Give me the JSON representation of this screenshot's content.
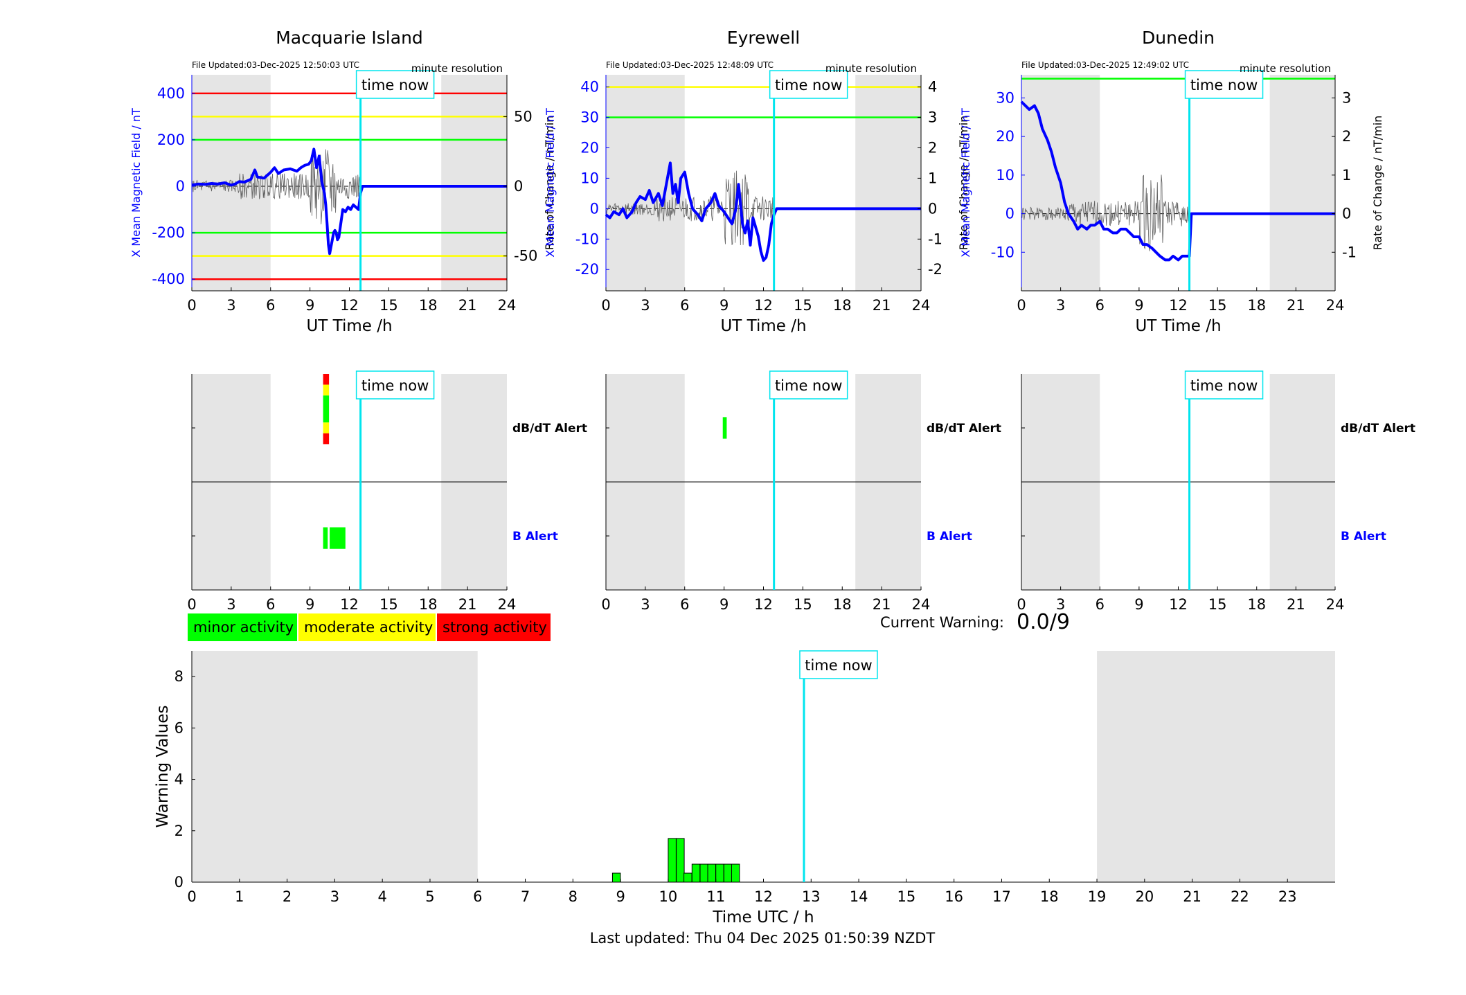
{
  "page": {
    "last_updated": "Last updated: Thu 04 Dec 2025 01:50:39 NZDT",
    "current_warning_label": "Current Warning:",
    "current_warning_value": "0.0/9",
    "time_now_label": "time now",
    "legend": [
      {
        "label": "minor activity",
        "color": "#00ff00"
      },
      {
        "label": "moderate activity",
        "color": "#ffff00"
      },
      {
        "label": "strong activity",
        "color": "#ff0000"
      }
    ],
    "colors": {
      "night_shade": "#e5e5e5",
      "field_line": "#0000ff",
      "rate_line": "#606060",
      "time_now": "#00e5ee",
      "red": "#ff0000",
      "yellow": "#ffff00",
      "green": "#00ff00"
    }
  },
  "chart_data": [
    {
      "id": "macquarie",
      "type": "line",
      "title": "Macquarie Island",
      "file_updated": "File Updated:03-Dec-2025 12:50:03 UTC",
      "resolution": "minute resolution",
      "xlabel": "UT Time /h",
      "ylabel_left": "X Mean Magnetic Field / nT",
      "ylabel_right": "Rate of Change / nT/min",
      "xlim": [
        0,
        24
      ],
      "xticks": [
        0,
        3,
        6,
        9,
        12,
        15,
        18,
        21,
        24
      ],
      "ylim": [
        -450,
        480
      ],
      "yticks": [
        -400,
        -200,
        0,
        200,
        400
      ],
      "y2lim": [
        -75,
        80
      ],
      "y2ticks": [
        -50,
        0,
        50
      ],
      "time_now": 12.85,
      "night": [
        [
          0,
          6
        ],
        [
          19,
          24
        ]
      ],
      "threshold_lines": [
        {
          "y": 400,
          "color": "red"
        },
        {
          "y": 300,
          "color": "yellow"
        },
        {
          "y": 200,
          "color": "green"
        },
        {
          "y": -200,
          "color": "green"
        },
        {
          "y": -300,
          "color": "yellow"
        },
        {
          "y": -400,
          "color": "red"
        }
      ],
      "series": [
        {
          "name": "X Mean Magnetic Field",
          "x": [
            0,
            0.5,
            1,
            1.5,
            2,
            2.5,
            3,
            3.3,
            3.6,
            4,
            4.5,
            4.8,
            5,
            5.5,
            6,
            6.3,
            6.6,
            7,
            7.5,
            8,
            8.3,
            8.6,
            8.9,
            9.1,
            9.3,
            9.5,
            9.7,
            9.9,
            10.1,
            10.2,
            10.3,
            10.4,
            10.5,
            10.6,
            10.7,
            10.8,
            10.9,
            11,
            11.1,
            11.2,
            11.3,
            11.5,
            11.7,
            11.9,
            12.1,
            12.3,
            12.5,
            12.7,
            12.85,
            13,
            24
          ],
          "values": [
            5,
            10,
            8,
            12,
            10,
            15,
            5,
            10,
            20,
            18,
            30,
            70,
            40,
            35,
            60,
            80,
            55,
            70,
            75,
            65,
            80,
            90,
            95,
            110,
            160,
            80,
            130,
            20,
            -30,
            -80,
            -160,
            -250,
            -290,
            -260,
            -230,
            -200,
            -190,
            -200,
            -230,
            -220,
            -180,
            -100,
            -110,
            -90,
            -100,
            -80,
            -90,
            -100,
            -30,
            0,
            0
          ]
        }
      ]
    },
    {
      "id": "eyrewell",
      "type": "line",
      "title": "Eyrewell",
      "file_updated": "File Updated:03-Dec-2025 12:48:09 UTC",
      "resolution": "minute resolution",
      "xlabel": "UT Time /h",
      "ylabel_left": "X Mean Magnetic Field / nT",
      "ylabel_right": "Rate of Change / nT/min",
      "xlim": [
        0,
        24
      ],
      "xticks": [
        0,
        3,
        6,
        9,
        12,
        15,
        18,
        21,
        24
      ],
      "ylim": [
        -27,
        44
      ],
      "yticks": [
        -20,
        -10,
        0,
        10,
        20,
        30,
        40
      ],
      "y2lim": [
        -2.7,
        4.4
      ],
      "y2ticks": [
        -2,
        -1,
        0,
        1,
        2,
        3,
        4
      ],
      "time_now": 12.8,
      "night": [
        [
          0,
          6
        ],
        [
          19,
          24
        ]
      ],
      "threshold_lines": [
        {
          "y": 40,
          "color": "yellow"
        },
        {
          "y": 30,
          "color": "green"
        }
      ],
      "series": [
        {
          "name": "X Mean Magnetic Field",
          "x": [
            0,
            0.3,
            0.6,
            1,
            1.3,
            1.6,
            2,
            2.3,
            2.6,
            3,
            3.3,
            3.6,
            4,
            4.3,
            4.6,
            4.9,
            5.1,
            5.3,
            5.5,
            5.7,
            6,
            6.3,
            6.6,
            7,
            7.3,
            7.6,
            8,
            8.3,
            8.6,
            9,
            9.3,
            9.6,
            9.9,
            10.1,
            10.4,
            10.6,
            10.8,
            11,
            11.2,
            11.4,
            11.6,
            11.8,
            12,
            12.2,
            12.4,
            12.6,
            12.8,
            13,
            24
          ],
          "values": [
            -2,
            -3,
            -1,
            -2,
            0,
            -3,
            -1,
            2,
            4,
            3,
            6,
            2,
            5,
            1,
            8,
            15,
            5,
            8,
            2,
            10,
            12,
            5,
            0,
            -2,
            -4,
            0,
            2,
            5,
            1,
            -1,
            -3,
            -5,
            0,
            8,
            -5,
            -8,
            -4,
            -12,
            -3,
            -6,
            -9,
            -14,
            -17,
            -16,
            -12,
            -5,
            -2,
            0,
            0
          ]
        }
      ]
    },
    {
      "id": "dunedin",
      "type": "line",
      "title": "Dunedin",
      "file_updated": "File Updated:03-Dec-2025 12:49:02 UTC",
      "resolution": "minute resolution",
      "xlabel": "UT Time /h",
      "ylabel_left": "X Mean Magnetic Field / nT",
      "ylabel_right": "Rate of Change / nT/min",
      "xlim": [
        0,
        24
      ],
      "xticks": [
        0,
        3,
        6,
        9,
        12,
        15,
        18,
        21,
        24
      ],
      "ylim": [
        -20,
        36
      ],
      "yticks": [
        -10,
        0,
        10,
        20,
        30
      ],
      "y2lim": [
        -2,
        3.6
      ],
      "y2ticks": [
        -1,
        0,
        1,
        2,
        3
      ],
      "time_now": 12.85,
      "night": [
        [
          0,
          6
        ],
        [
          19,
          24
        ]
      ],
      "threshold_lines": [
        {
          "y": 35,
          "color": "green"
        }
      ],
      "series": [
        {
          "name": "X Mean Magnetic Field",
          "x": [
            0,
            0.3,
            0.6,
            1,
            1.3,
            1.6,
            2,
            2.3,
            2.6,
            3,
            3.3,
            3.6,
            4,
            4.3,
            4.6,
            5,
            5.3,
            5.6,
            6,
            6.3,
            6.6,
            7,
            7.3,
            7.6,
            8,
            8.3,
            8.6,
            9,
            9.3,
            9.6,
            10,
            10.3,
            10.6,
            11,
            11.3,
            11.6,
            12,
            12.3,
            12.6,
            12.85,
            13,
            24
          ],
          "values": [
            29,
            28,
            27,
            28,
            26,
            22,
            19,
            16,
            12,
            8,
            3,
            0,
            -2,
            -4,
            -3,
            -4,
            -3,
            -3,
            -2,
            -4,
            -4,
            -5,
            -5,
            -4,
            -4,
            -5,
            -6,
            -6,
            -8,
            -8,
            -9,
            -10,
            -11,
            -12,
            -12,
            -11,
            -12,
            -11,
            -11,
            -11,
            0,
            0
          ]
        }
      ]
    },
    {
      "id": "alerts-macquarie",
      "type": "bar",
      "rows": [
        "dB/dT Alert",
        "B Alert"
      ],
      "xlim": [
        0,
        24
      ],
      "xticks": [
        0,
        3,
        6,
        9,
        12,
        15,
        18,
        21,
        24
      ],
      "time_now": 12.85,
      "night": [
        [
          0,
          6
        ],
        [
          19,
          24
        ]
      ],
      "segments": [
        {
          "row": "dB/dT Alert",
          "x0": 10.0,
          "x1": 10.45,
          "level": "strong",
          "part": [
            0,
            0.1
          ]
        },
        {
          "row": "dB/dT Alert",
          "x0": 10.0,
          "x1": 10.45,
          "level": "moderate",
          "part": [
            0.1,
            0.2
          ]
        },
        {
          "row": "dB/dT Alert",
          "x0": 10.0,
          "x1": 10.45,
          "level": "minor",
          "part": [
            0.2,
            0.45
          ]
        },
        {
          "row": "dB/dT Alert",
          "x0": 10.0,
          "x1": 10.45,
          "level": "moderate",
          "part": [
            0.45,
            0.55
          ]
        },
        {
          "row": "dB/dT Alert",
          "x0": 10.0,
          "x1": 10.45,
          "level": "strong",
          "part": [
            0.55,
            0.65
          ]
        },
        {
          "row": "B Alert",
          "x0": 10.0,
          "x1": 10.35,
          "level": "minor",
          "part": [
            0.42,
            0.62
          ]
        },
        {
          "row": "B Alert",
          "x0": 10.5,
          "x1": 11.7,
          "level": "minor",
          "part": [
            0.42,
            0.62
          ]
        }
      ]
    },
    {
      "id": "alerts-eyrewell",
      "type": "bar",
      "rows": [
        "dB/dT Alert",
        "B Alert"
      ],
      "xlim": [
        0,
        24
      ],
      "xticks": [
        0,
        3,
        6,
        9,
        12,
        15,
        18,
        21,
        24
      ],
      "time_now": 12.8,
      "night": [
        [
          0,
          6
        ],
        [
          19,
          24
        ]
      ],
      "segments": [
        {
          "row": "dB/dT Alert",
          "x0": 8.9,
          "x1": 9.2,
          "level": "minor",
          "part": [
            0.4,
            0.6
          ]
        }
      ]
    },
    {
      "id": "alerts-dunedin",
      "type": "bar",
      "rows": [
        "dB/dT Alert",
        "B Alert"
      ],
      "xlim": [
        0,
        24
      ],
      "xticks": [
        0,
        3,
        6,
        9,
        12,
        15,
        18,
        21,
        24
      ],
      "time_now": 12.85,
      "night": [
        [
          0,
          6
        ],
        [
          19,
          24
        ]
      ],
      "segments": []
    },
    {
      "id": "warning-values",
      "type": "bar",
      "xlabel": "Time UTC / h",
      "ylabel": "Warning Values",
      "xlim": [
        0,
        24
      ],
      "xticks": [
        0,
        1,
        2,
        3,
        4,
        5,
        6,
        7,
        8,
        9,
        10,
        11,
        12,
        13,
        14,
        15,
        16,
        17,
        18,
        19,
        20,
        21,
        22,
        23
      ],
      "ylim": [
        0,
        9
      ],
      "yticks": [
        0,
        2,
        4,
        6,
        8
      ],
      "time_now": 12.85,
      "night": [
        [
          0,
          6
        ],
        [
          19,
          24
        ]
      ],
      "bin_width": 0.1667,
      "bars": [
        {
          "x": 8.83,
          "value": 0.35
        },
        {
          "x": 10.0,
          "value": 1.7
        },
        {
          "x": 10.17,
          "value": 1.7
        },
        {
          "x": 10.33,
          "value": 0.35
        },
        {
          "x": 10.5,
          "value": 0.7
        },
        {
          "x": 10.67,
          "value": 0.7
        },
        {
          "x": 10.83,
          "value": 0.7
        },
        {
          "x": 11.0,
          "value": 0.7
        },
        {
          "x": 11.17,
          "value": 0.7
        },
        {
          "x": 11.33,
          "value": 0.7
        }
      ]
    }
  ]
}
